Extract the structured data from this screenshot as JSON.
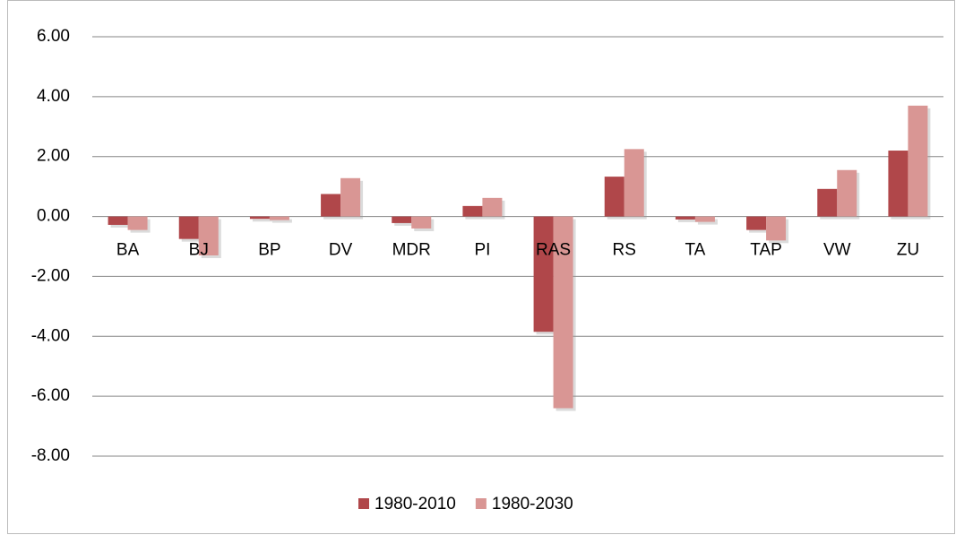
{
  "chart_data": {
    "type": "bar",
    "categories": [
      "BA",
      "BJ",
      "BP",
      "DV",
      "MDR",
      "PI",
      "RAS",
      "RS",
      "TA",
      "TAP",
      "VW",
      "ZU"
    ],
    "series": [
      {
        "name": "1980-2010",
        "color": "#b0474a",
        "values": [
          -0.28,
          -0.75,
          -0.08,
          0.75,
          -0.22,
          0.35,
          -3.85,
          1.33,
          -0.1,
          -0.45,
          0.92,
          2.2
        ]
      },
      {
        "name": "1980-2030",
        "color": "#d99694",
        "values": [
          -0.45,
          -1.3,
          -0.12,
          1.28,
          -0.4,
          0.62,
          -6.4,
          2.25,
          -0.18,
          -0.8,
          1.55,
          3.7
        ]
      }
    ],
    "ylim": [
      -8,
      6
    ],
    "yticks": [
      {
        "value": -8,
        "label": "-8.00"
      },
      {
        "value": -6,
        "label": "-6.00"
      },
      {
        "value": -4,
        "label": "-4.00"
      },
      {
        "value": -2,
        "label": "-2.00"
      },
      {
        "value": 0,
        "label": "0.00"
      },
      {
        "value": 2,
        "label": "2.00"
      },
      {
        "value": 4,
        "label": "4.00"
      },
      {
        "value": 6,
        "label": "6.00"
      }
    ],
    "grid": true,
    "legend": "bottom"
  }
}
